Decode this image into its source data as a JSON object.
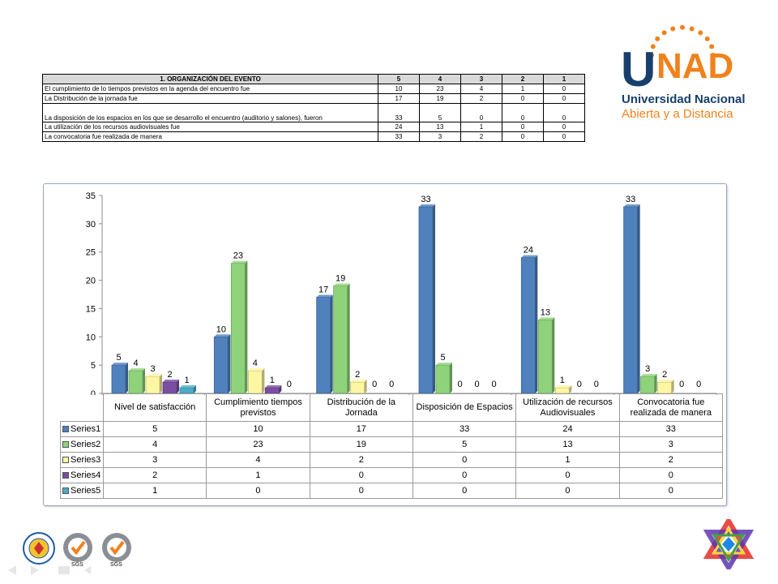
{
  "logo": {
    "brand": "UNAD",
    "line1": "Universidad Nacional",
    "line2": "Abierta y a Distancia"
  },
  "org_table": {
    "header": "1. ORGANIZACIÓN DEL EVENTO",
    "columns": [
      "5",
      "4",
      "3",
      "2",
      "1"
    ],
    "rows": [
      {
        "label": "El cumplimiento de lo tiempos previstos en la agenda del encuentro fue",
        "values": [
          "10",
          "23",
          "4",
          "1",
          "0"
        ]
      },
      {
        "label": "La Distribución de la jornada fue",
        "values": [
          "17",
          "19",
          "2",
          "0",
          "0"
        ]
      },
      {
        "label": "La disposición de los espacios en los que se desarrollo el encuentro (auditorio y salones), fueron",
        "values": [
          "33",
          "5",
          "0",
          "0",
          "0"
        ]
      },
      {
        "label": "La utilización de los recursos audiovisuales fue",
        "values": [
          "24",
          "13",
          "1",
          "0",
          "0"
        ]
      },
      {
        "label": "La convocatoria fue realizada de manera",
        "values": [
          "33",
          "3",
          "2",
          "0",
          "0"
        ]
      }
    ]
  },
  "chart_data": {
    "type": "bar",
    "categories": [
      [
        "Nivel de satisfacción"
      ],
      [
        "Cumplimiento tiempos",
        "previstos"
      ],
      [
        "Distribución  de  la",
        "Jornada"
      ],
      [
        "Disposición de Espacios"
      ],
      [
        "Utilización de recursos",
        "Audiovisuales"
      ],
      [
        "Convocatoria fue",
        "realizada de manera"
      ]
    ],
    "series": [
      {
        "name": "Series1",
        "values": [
          5,
          10,
          17,
          33,
          24,
          33
        ],
        "color": "#4f81bd"
      },
      {
        "name": "Series2",
        "values": [
          4,
          23,
          19,
          5,
          13,
          3
        ],
        "color": "#8ed37a"
      },
      {
        "name": "Series3",
        "values": [
          3,
          4,
          2,
          0,
          1,
          2
        ],
        "color": "#fdf6a3"
      },
      {
        "name": "Series4",
        "values": [
          2,
          1,
          0,
          0,
          0,
          0
        ],
        "color": "#7a4fa3"
      },
      {
        "name": "Series5",
        "values": [
          1,
          0,
          0,
          0,
          0,
          0
        ],
        "color": "#4bacc6"
      }
    ],
    "ylim": [
      0,
      35
    ],
    "yticks": [
      "0",
      "5",
      "10",
      "15",
      "20",
      "25",
      "30",
      "35"
    ],
    "grid": false,
    "legend": "data-table"
  },
  "icons": {
    "footer": [
      "logo-seal-icon",
      "sgs-certification-icon",
      "sgs-certification-icon"
    ],
    "nav": [
      "arrow-left-icon",
      "arrow-right-icon",
      "menu-icon",
      "return-icon"
    ],
    "star": "six-point-star-icon"
  }
}
